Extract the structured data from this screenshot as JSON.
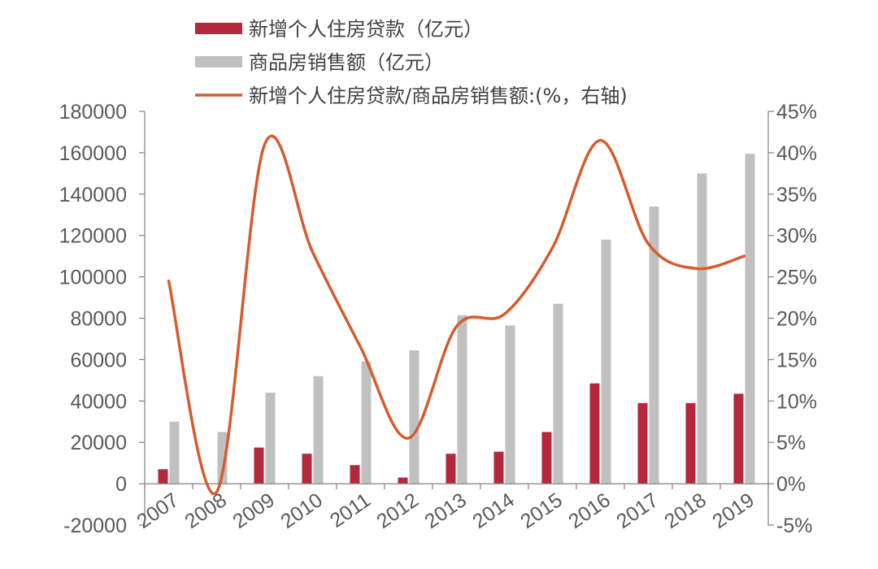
{
  "colors": {
    "loan_bar": "#b3283a",
    "sales_bar": "#c0c0c0",
    "ratio_line": "#d65b2d",
    "axis": "#808080",
    "tick_text": "#595959",
    "legend_text": "#404040"
  },
  "chart_data": {
    "type": "bar",
    "categories": [
      "2007",
      "2008",
      "2009",
      "2010",
      "2011",
      "2012",
      "2013",
      "2014",
      "2015",
      "2016",
      "2017",
      "2018",
      "2019"
    ],
    "series": [
      {
        "name": "新增个人住房贷款（亿元）",
        "type": "bar",
        "axis": "left",
        "values": [
          7000,
          0,
          17500,
          14500,
          9000,
          3000,
          14500,
          15500,
          25000,
          48500,
          39000,
          39000,
          43500
        ]
      },
      {
        "name": "商品房销售额（亿元）",
        "type": "bar",
        "axis": "left",
        "values": [
          30000,
          25000,
          44000,
          52000,
          59000,
          64500,
          81500,
          76500,
          87000,
          118000,
          134000,
          150000,
          159500
        ]
      },
      {
        "name": "新增个人住房贷款/商品房销售额:(%，右轴)",
        "type": "line",
        "axis": "right",
        "values": [
          24.5,
          -1.0,
          41.0,
          28.0,
          16.5,
          5.5,
          19.0,
          20.5,
          28.5,
          41.5,
          29.0,
          26.0,
          27.5
        ]
      }
    ],
    "left_axis": {
      "ylim": [
        -20000,
        180000
      ],
      "ticks": [
        -20000,
        0,
        20000,
        40000,
        60000,
        80000,
        100000,
        120000,
        140000,
        160000,
        180000
      ],
      "tick_labels": [
        "-20000",
        "0",
        "20000",
        "40000",
        "60000",
        "80000",
        "100000",
        "120000",
        "140000",
        "160000",
        "180000"
      ]
    },
    "right_axis": {
      "ylim": [
        -5,
        45
      ],
      "ticks": [
        -5,
        0,
        5,
        10,
        15,
        20,
        25,
        30,
        35,
        40,
        45
      ],
      "tick_labels": [
        "-5%",
        "0%",
        "5%",
        "10%",
        "15%",
        "20%",
        "25%",
        "30%",
        "35%",
        "40%",
        "45%"
      ]
    },
    "legend_position": "top",
    "grid": false
  }
}
